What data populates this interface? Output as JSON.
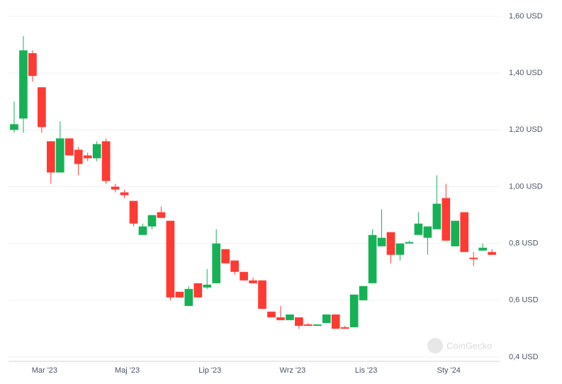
{
  "chart_data": {
    "type": "candlestick",
    "categories": [
      null,
      null,
      null,
      "Mar '23",
      null,
      null,
      null,
      null,
      null,
      null,
      null,
      null,
      "Maj '23",
      null,
      null,
      null,
      null,
      null,
      null,
      null,
      null,
      "Lip '23",
      null,
      null,
      null,
      null,
      null,
      null,
      null,
      null,
      "Wrz '23",
      null,
      null,
      null,
      null,
      null,
      null,
      null,
      "Lis '23",
      null,
      null,
      null,
      null,
      null,
      null,
      null,
      null,
      "Sty '24",
      null,
      null,
      null,
      null,
      null
    ],
    "open": [
      1.2,
      1.24,
      1.47,
      1.35,
      1.16,
      1.05,
      1.17,
      1.13,
      1.11,
      1.1,
      1.16,
      1.0,
      0.98,
      0.95,
      0.83,
      0.86,
      0.91,
      0.88,
      0.63,
      0.58,
      0.66,
      0.645,
      0.66,
      0.78,
      0.74,
      0.7,
      0.67,
      0.67,
      0.56,
      0.54,
      0.53,
      0.54,
      0.515,
      0.51,
      0.52,
      0.55,
      0.505,
      0.505,
      0.6,
      0.66,
      0.79,
      0.84,
      0.76,
      0.8,
      0.83,
      0.82,
      0.85,
      0.96,
      0.79,
      0.91,
      0.75,
      0.775,
      0.77
    ],
    "high": [
      1.3,
      1.53,
      1.48,
      1.35,
      1.16,
      1.23,
      1.17,
      1.14,
      1.12,
      1.16,
      1.17,
      1.01,
      0.99,
      0.95,
      0.87,
      0.9,
      0.93,
      0.88,
      0.63,
      0.65,
      0.66,
      0.71,
      0.85,
      0.78,
      0.74,
      0.7,
      0.68,
      0.67,
      0.56,
      0.58,
      0.55,
      0.54,
      0.52,
      0.515,
      0.55,
      0.55,
      0.51,
      0.62,
      0.65,
      0.85,
      0.92,
      0.84,
      0.8,
      0.81,
      0.91,
      0.86,
      1.04,
      1.01,
      0.88,
      0.91,
      0.77,
      0.8,
      0.78
    ],
    "low": [
      1.19,
      1.19,
      1.37,
      1.19,
      1.01,
      1.05,
      1.11,
      1.04,
      1.09,
      1.09,
      1.01,
      0.98,
      0.96,
      0.86,
      0.83,
      0.85,
      0.89,
      0.6,
      0.61,
      0.58,
      0.61,
      0.64,
      0.66,
      0.73,
      0.69,
      0.67,
      0.66,
      0.57,
      0.54,
      0.53,
      0.53,
      0.5,
      0.51,
      0.51,
      0.52,
      0.5,
      0.5,
      0.505,
      0.6,
      0.66,
      0.79,
      0.73,
      0.74,
      0.8,
      0.83,
      0.76,
      0.85,
      0.81,
      0.79,
      0.77,
      0.72,
      0.775,
      0.76
    ],
    "close": [
      1.22,
      1.48,
      1.39,
      1.21,
      1.05,
      1.17,
      1.11,
      1.08,
      1.1,
      1.15,
      1.02,
      0.99,
      0.97,
      0.87,
      0.86,
      0.9,
      0.89,
      0.61,
      0.61,
      0.64,
      0.61,
      0.655,
      0.8,
      0.73,
      0.7,
      0.67,
      0.66,
      0.57,
      0.54,
      0.53,
      0.55,
      0.51,
      0.51,
      0.515,
      0.55,
      0.5,
      0.5,
      0.62,
      0.65,
      0.83,
      0.82,
      0.76,
      0.8,
      0.805,
      0.87,
      0.86,
      0.94,
      0.81,
      0.88,
      0.77,
      0.745,
      0.785,
      0.76
    ],
    "up_color": "#16b157",
    "down_color": "#ff3a33",
    "ylim": [
      0.4,
      1.6
    ],
    "yticks": [
      {
        "value": 0.4,
        "label": "0,4 USD"
      },
      {
        "value": 0.6,
        "label": "0,6 USD"
      },
      {
        "value": 0.8,
        "label": "0,8 USD"
      },
      {
        "value": 1.0,
        "label": "1,00 USD"
      },
      {
        "value": 1.2,
        "label": "1,20 USD"
      },
      {
        "value": 1.4,
        "label": "1,40 USD"
      },
      {
        "value": 1.6,
        "label": "1,60 USD"
      }
    ],
    "grid": true,
    "watermark": "CoinGecko"
  }
}
